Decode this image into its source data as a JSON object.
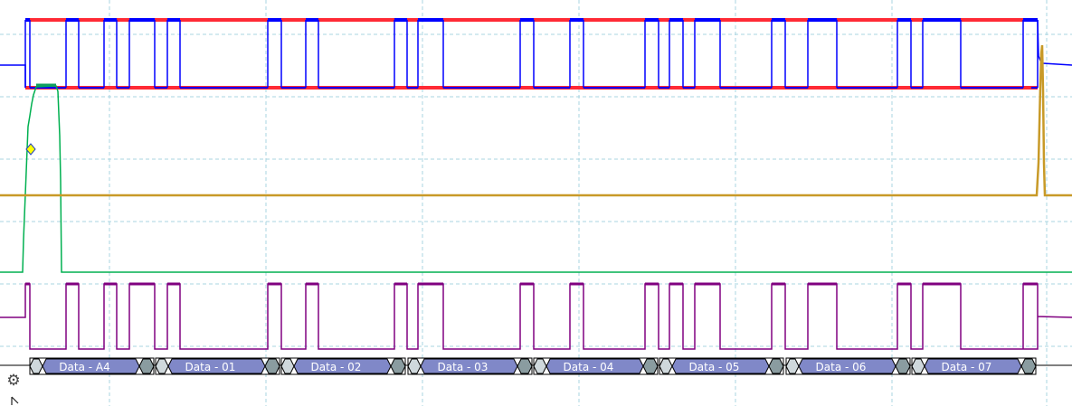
{
  "colors": {
    "grid": "#a8d4e0",
    "bus_blue": "#0000ff",
    "bus_red": "#ff2a35",
    "analog_green": "#00b050",
    "analog_gold": "#c89a28",
    "digital_purple": "#800080",
    "decode_fill": "#8088c8",
    "decode_start": "#cfd8dc",
    "decode_stop": "#8a9ca0",
    "marker_yellow": "#ffff00"
  },
  "decoder": {
    "frames": [
      {
        "label": "Data - A4"
      },
      {
        "label": "Data - 01"
      },
      {
        "label": "Data - 02"
      },
      {
        "label": "Data - 03"
      },
      {
        "label": "Data - 04"
      },
      {
        "label": "Data - 05"
      },
      {
        "label": "Data - 06"
      },
      {
        "label": "Data - 07"
      }
    ]
  },
  "icons": {
    "settings": "gear-icon",
    "pointer": "mouse-cursor-icon",
    "trigger_marker": "diamond-marker-icon"
  }
}
